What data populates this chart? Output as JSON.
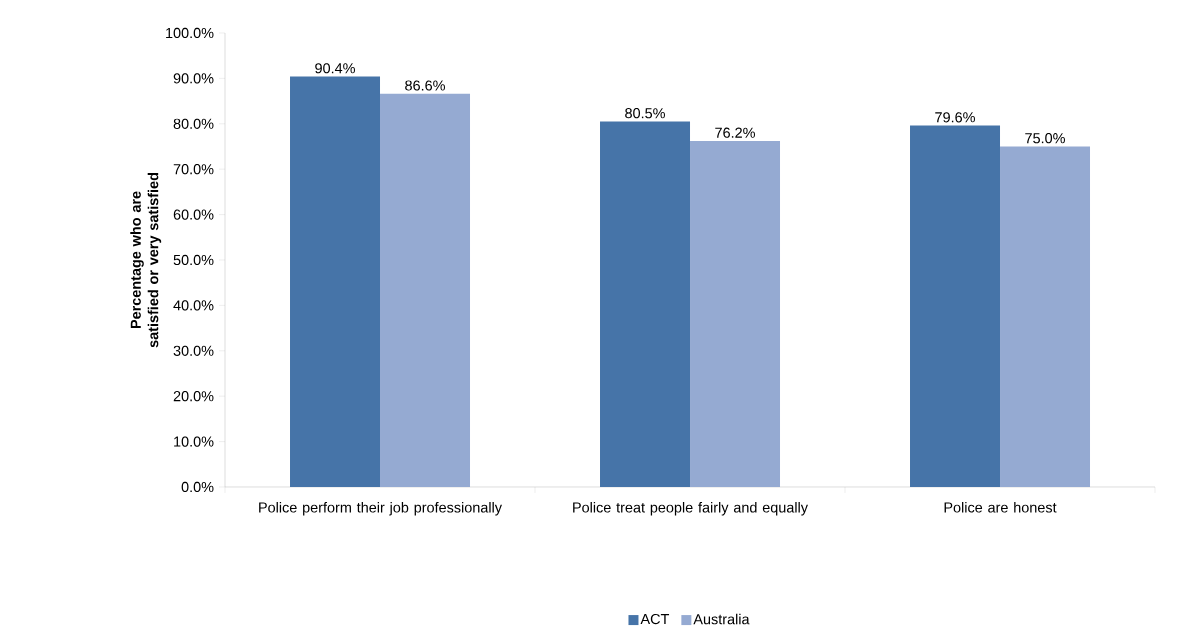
{
  "chart_data": {
    "type": "bar",
    "ylabel": "Percentage who are satisfied or very satisfied",
    "categories": [
      "Police perform their job professionally",
      "Police treat people fairly and equally",
      "Police are honest"
    ],
    "series": [
      {
        "name": "ACT",
        "color": "#4674a8",
        "values": [
          90.4,
          80.5,
          79.6
        ],
        "value_labels": [
          "90.4%",
          "80.5%",
          "79.6%"
        ]
      },
      {
        "name": "Australia",
        "color": "#95aad2",
        "values": [
          86.6,
          76.2,
          75.0
        ],
        "value_labels": [
          "86.6%",
          "76.2%",
          "75.0%"
        ]
      }
    ],
    "ylim": [
      0,
      100
    ],
    "yticks": [
      {
        "value": 0,
        "label": "0.0%"
      },
      {
        "value": 10,
        "label": "10.0%"
      },
      {
        "value": 20,
        "label": "20.0%"
      },
      {
        "value": 30,
        "label": "30.0%"
      },
      {
        "value": 40,
        "label": "40.0%"
      },
      {
        "value": 50,
        "label": "50.0%"
      },
      {
        "value": 60,
        "label": "60.0%"
      },
      {
        "value": 70,
        "label": "70.0%"
      },
      {
        "value": 80,
        "label": "80.0%"
      },
      {
        "value": 90,
        "label": "90.0%"
      },
      {
        "value": 100,
        "label": "100.0%"
      }
    ],
    "legend": "bottom",
    "grid": false
  }
}
